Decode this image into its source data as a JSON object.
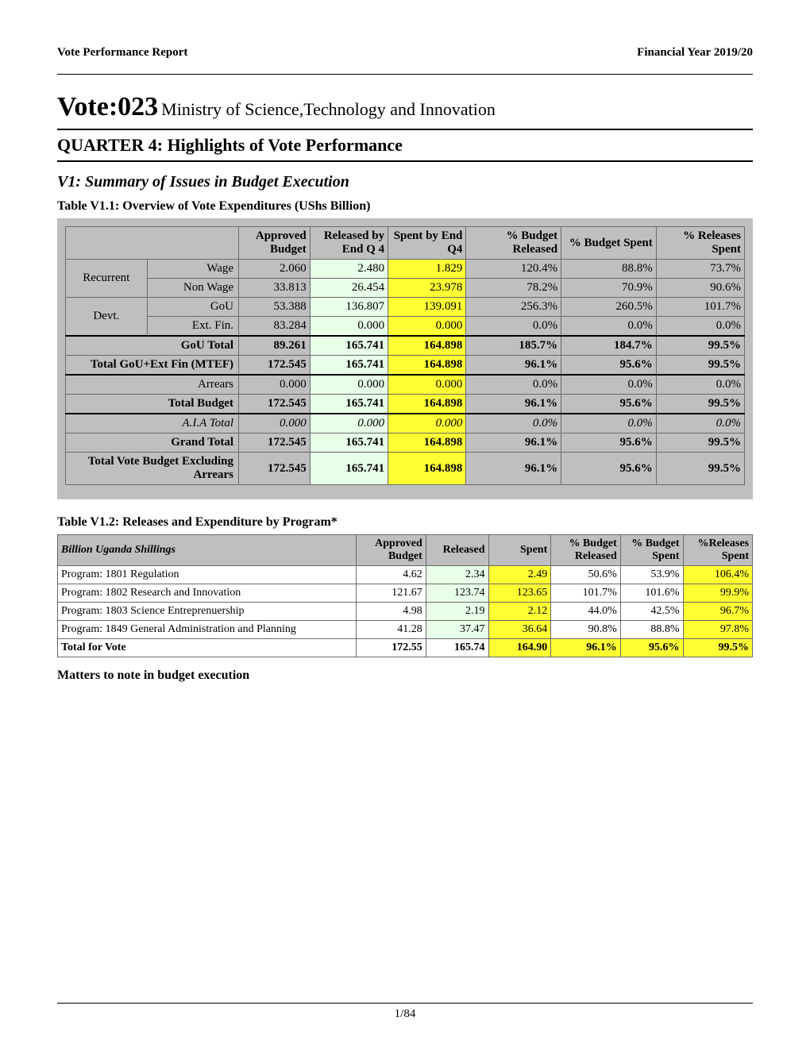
{
  "header": {
    "left": "Vote Performance Report",
    "right": "Financial Year 2019/20"
  },
  "vote": {
    "label": "Vote:023",
    "name": "Ministry of Science,Technology and Innovation"
  },
  "section_title": "QUARTER 4: Highlights of Vote Performance",
  "v1_title": "V1: Summary of Issues in Budget Execution",
  "table1": {
    "caption": "Table V1.1: Overview of Vote Expenditures (UShs Billion)",
    "columns": [
      "Approved Budget",
      "Released by End Q 4",
      "Spent by End Q4",
      "% Budget Released",
      "% Budget Spent",
      "% Releases Spent"
    ],
    "column_widths_pct": [
      10.5,
      11.5,
      11.5,
      14,
      14,
      13
    ],
    "label_col_widths_pct": [
      12,
      13.5
    ],
    "rows": [
      {
        "cat": "Recurrent",
        "cat_rowspan": 2,
        "label": "Wage",
        "approved": "2.060",
        "released": "2.480",
        "spent": "1.829",
        "pct_rel": "120.4%",
        "pct_sp": "88.8%",
        "pct_relsp": "73.7%"
      },
      {
        "label": "Non Wage",
        "approved": "33.813",
        "released": "26.454",
        "spent": "23.978",
        "pct_rel": "78.2%",
        "pct_sp": "70.9%",
        "pct_relsp": "90.6%"
      },
      {
        "cat": "Devt.",
        "cat_rowspan": 2,
        "label": "GoU",
        "approved": "53.388",
        "released": "136.807",
        "spent": "139.091",
        "pct_rel": "256.3%",
        "pct_sp": "260.5%",
        "pct_relsp": "101.7%"
      },
      {
        "label": "Ext. Fin.",
        "approved": "83.284",
        "released": "0.000",
        "spent": "0.000",
        "pct_rel": "0.0%",
        "pct_sp": "0.0%",
        "pct_relsp": "0.0%"
      },
      {
        "full_label": "GoU Total",
        "bold": true,
        "sep": true,
        "approved": "89.261",
        "released": "165.741",
        "spent": "164.898",
        "pct_rel": "185.7%",
        "pct_sp": "184.7%",
        "pct_relsp": "99.5%"
      },
      {
        "full_label": "Total GoU+Ext Fin (MTEF)",
        "bold": true,
        "approved": "172.545",
        "released": "165.741",
        "spent": "164.898",
        "pct_rel": "96.1%",
        "pct_sp": "95.6%",
        "pct_relsp": "99.5%"
      },
      {
        "full_label": "Arrears",
        "sep": true,
        "approved": "0.000",
        "released": "0.000",
        "spent": "0.000",
        "pct_rel": "0.0%",
        "pct_sp": "0.0%",
        "pct_relsp": "0.0%"
      },
      {
        "full_label": "Total Budget",
        "bold": true,
        "approved": "172.545",
        "released": "165.741",
        "spent": "164.898",
        "pct_rel": "96.1%",
        "pct_sp": "95.6%",
        "pct_relsp": "99.5%"
      },
      {
        "full_label": "A.I.A Total",
        "italic": true,
        "sep": true,
        "approved": "0.000",
        "released": "0.000",
        "spent": "0.000",
        "pct_rel": "0.0%",
        "pct_sp": "0.0%",
        "pct_relsp": "0.0%"
      },
      {
        "full_label": "Grand Total",
        "bold": true,
        "approved": "172.545",
        "released": "165.741",
        "spent": "164.898",
        "pct_rel": "96.1%",
        "pct_sp": "95.6%",
        "pct_relsp": "99.5%"
      },
      {
        "full_label": "Total Vote Budget Excluding Arrears",
        "bold": true,
        "approved": "172.545",
        "released": "165.741",
        "spent": "164.898",
        "pct_rel": "96.1%",
        "pct_sp": "95.6%",
        "pct_relsp": "99.5%"
      }
    ],
    "highlight_colors": {
      "released": "#e8ffe8",
      "spent": "#ffff33",
      "header_bg": "#bfbfbf",
      "border": "#6a6a6a"
    }
  },
  "table2": {
    "caption": "Table V1.2: Releases and Expenditure by Program*",
    "columns": [
      "Billion Uganda Shillings",
      "Approved Budget",
      "Released",
      "Spent",
      "% Budget Released",
      "% Budget Spent",
      "%Releases Spent"
    ],
    "column_widths_pct": [
      43,
      10,
      9,
      9,
      10,
      9,
      10
    ],
    "rows": [
      {
        "label": "Program: 1801 Regulation",
        "approved": "4.62",
        "released": "2.34",
        "spent": "2.49",
        "pct_rel": "50.6%",
        "pct_sp": "53.9%",
        "pct_relsp": "106.4%"
      },
      {
        "label": "Program: 1802 Research and Innovation",
        "approved": "121.67",
        "released": "123.74",
        "spent": "123.65",
        "pct_rel": "101.7%",
        "pct_sp": "101.6%",
        "pct_relsp": "99.9%"
      },
      {
        "label": "Program: 1803 Science Entreprenuership",
        "approved": "4.98",
        "released": "2.19",
        "spent": "2.12",
        "pct_rel": "44.0%",
        "pct_sp": "42.5%",
        "pct_relsp": "96.7%"
      },
      {
        "label": "Program: 1849 General Administration and Planning",
        "approved": "41.28",
        "released": "37.47",
        "spent": "36.64",
        "pct_rel": "90.8%",
        "pct_sp": "88.8%",
        "pct_relsp": "97.8%"
      }
    ],
    "total_row": {
      "label": "Total for Vote",
      "approved": "172.55",
      "released": "165.74",
      "spent": "164.90",
      "pct_rel": "96.1%",
      "pct_sp": "95.6%",
      "pct_relsp": "99.5%"
    },
    "highlight_colors": {
      "released": "#e8ffe8",
      "spent": "#ffff33",
      "header_bg": "#bfbfbf"
    }
  },
  "matters_title": "Matters to note in budget execution",
  "page_number": "1/84"
}
